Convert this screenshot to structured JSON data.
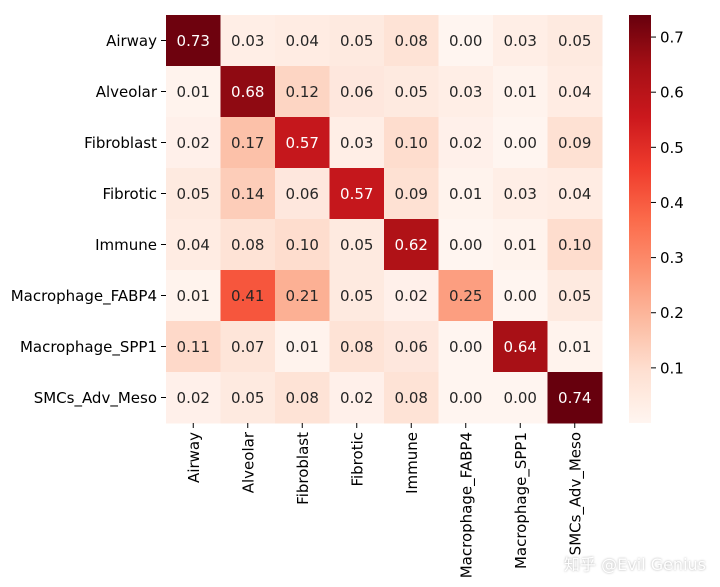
{
  "chart_data": {
    "type": "heatmap",
    "rows": [
      "Airway",
      "Alveolar",
      "Fibroblast",
      "Fibrotic",
      "Immune",
      "Macrophage_FABP4",
      "Macrophage_SPP1",
      "SMCs_Adv_Meso"
    ],
    "cols": [
      "Airway",
      "Alveolar",
      "Fibroblast",
      "Fibrotic",
      "Immune",
      "Macrophage_FABP4",
      "Macrophage_SPP1",
      "SMCs_Adv_Meso"
    ],
    "values": [
      [
        0.73,
        0.03,
        0.04,
        0.05,
        0.08,
        0.0,
        0.03,
        0.05
      ],
      [
        0.01,
        0.68,
        0.12,
        0.06,
        0.05,
        0.03,
        0.01,
        0.04
      ],
      [
        0.02,
        0.17,
        0.57,
        0.03,
        0.1,
        0.02,
        0.0,
        0.09
      ],
      [
        0.05,
        0.14,
        0.06,
        0.57,
        0.09,
        0.01,
        0.03,
        0.04
      ],
      [
        0.04,
        0.08,
        0.1,
        0.05,
        0.62,
        0.0,
        0.01,
        0.1
      ],
      [
        0.01,
        0.41,
        0.21,
        0.05,
        0.02,
        0.25,
        0.0,
        0.05
      ],
      [
        0.11,
        0.07,
        0.01,
        0.08,
        0.06,
        0.0,
        0.64,
        0.01
      ],
      [
        0.02,
        0.05,
        0.08,
        0.02,
        0.08,
        0.0,
        0.0,
        0.74
      ]
    ],
    "colormap": "Reds",
    "vmin": 0.0,
    "vmax": 0.74,
    "colorbar_ticks": [
      "0.1",
      "0.2",
      "0.3",
      "0.4",
      "0.5",
      "0.6",
      "0.7"
    ],
    "colorbar_tick_values": [
      0.1,
      0.2,
      0.3,
      0.4,
      0.5,
      0.6,
      0.7
    ],
    "title": "",
    "xlabel": "",
    "ylabel": ""
  },
  "watermark": "知乎 @Evil Genius"
}
